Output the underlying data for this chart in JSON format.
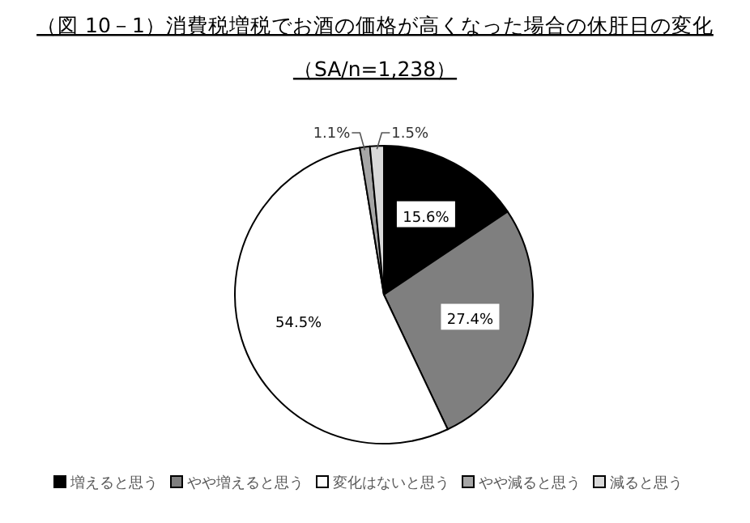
{
  "chart_data": {
    "type": "pie",
    "title": "（図 10－1）消費税増税でお酒の価格が高くなった場合の休肝日の変化",
    "subtitle": "（SA/n=1,238）",
    "categories": [
      "増えると思う",
      "やや増えると思う",
      "変化はないと思う",
      "やや減ると思う",
      "減ると思う"
    ],
    "values": [
      15.6,
      27.4,
      54.5,
      1.1,
      1.5
    ],
    "colors": [
      "#000000",
      "#7f7f7f",
      "#ffffff",
      "#a6a6a6",
      "#d9d9d9"
    ],
    "value_labels": [
      "15.6%",
      "27.4%",
      "54.5%",
      "1.1%",
      "1.5%"
    ],
    "legend": "bottom"
  }
}
